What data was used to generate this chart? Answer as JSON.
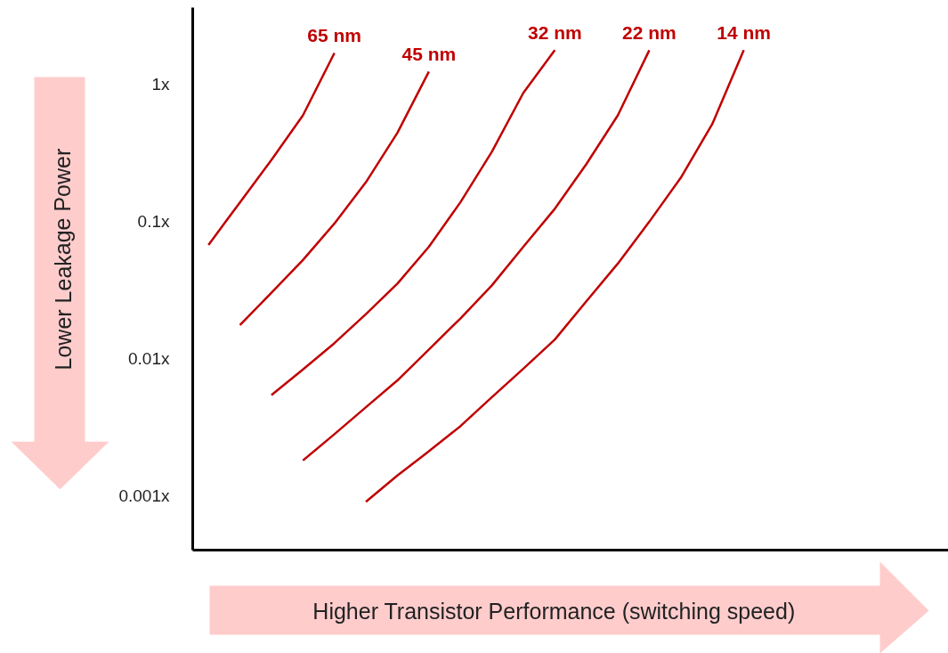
{
  "chart_data": {
    "type": "line",
    "xlabel": "Higher Transistor Performance (switching speed)",
    "ylabel": "Lower Leakage Power",
    "log": "y",
    "tick_labels": "y",
    "grid": false,
    "ylim": [
      0.0004,
      3.6
    ],
    "yticks": [
      {
        "value": 0.001,
        "label": "0.001x"
      },
      {
        "value": 0.01,
        "label": "0.01x"
      },
      {
        "value": 0.1,
        "label": "0.1x"
      },
      {
        "value": 1,
        "label": "1x"
      }
    ],
    "categories": [
      null,
      null,
      null,
      null,
      null,
      null,
      null,
      null,
      null,
      null,
      null,
      null,
      null,
      null,
      null,
      null,
      null,
      null,
      null,
      null,
      null,
      null,
      null,
      null
    ],
    "series": [
      {
        "name": "65 nm",
        "color": "#c00000",
        "values": [
          0.067,
          0.137,
          0.279,
          0.59,
          1.68,
          null,
          null,
          null,
          null,
          null,
          null,
          null,
          null,
          null,
          null,
          null,
          null,
          null,
          null,
          null,
          null,
          null,
          null,
          null
        ]
      },
      {
        "name": "45 nm",
        "color": "#c00000",
        "values": [
          null,
          0.0175,
          0.03,
          0.052,
          0.096,
          0.192,
          0.44,
          1.23,
          null,
          null,
          null,
          null,
          null,
          null,
          null,
          null,
          null,
          null,
          null,
          null,
          null,
          null,
          null,
          null
        ]
      },
      {
        "name": "32 nm",
        "color": "#c00000",
        "values": [
          null,
          null,
          0.0054,
          0.0083,
          0.0129,
          0.021,
          0.035,
          0.065,
          0.137,
          0.32,
          0.86,
          1.76,
          null,
          null,
          null,
          null,
          null,
          null,
          null,
          null,
          null,
          null,
          null,
          null
        ]
      },
      {
        "name": "22 nm",
        "color": "#c00000",
        "values": [
          null,
          null,
          null,
          0.0018,
          0.0028,
          0.0044,
          0.0069,
          0.0116,
          0.0195,
          0.034,
          0.065,
          0.123,
          0.26,
          0.59,
          1.76,
          null,
          null,
          null,
          null,
          null,
          null,
          null,
          null,
          null
        ]
      },
      {
        "name": "14 nm",
        "color": "#c00000",
        "values": [
          null,
          null,
          null,
          null,
          null,
          0.0009,
          0.0014,
          0.0021,
          0.0032,
          0.0052,
          0.0084,
          0.0137,
          0.026,
          0.049,
          0.099,
          0.207,
          0.51,
          1.76,
          null,
          null,
          null,
          null,
          null,
          null
        ]
      }
    ]
  }
}
